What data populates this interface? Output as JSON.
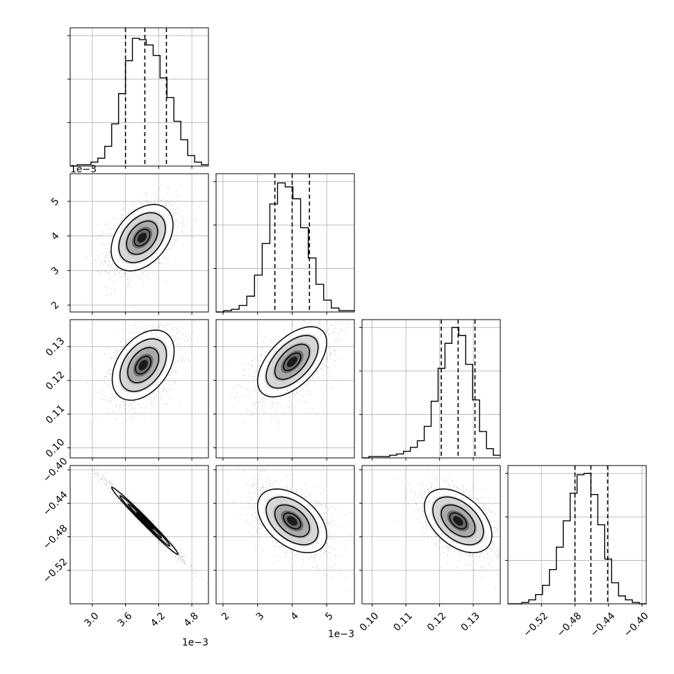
{
  "chart_data": {
    "type": "corner",
    "grid": true,
    "colors": {
      "ink": "#000000",
      "grid": "#b0b0b0",
      "scatter": "#555555"
    },
    "params": [
      {
        "range": [
          2.6,
          5.1
        ],
        "median": 3.95,
        "quantiles": [
          3.6,
          3.95,
          4.34
        ],
        "ticks": [
          3.0,
          3.6,
          4.2,
          4.8
        ],
        "tick_labels": [
          "3.0",
          "3.6",
          "4.2",
          "4.8"
        ],
        "sci_label": "1e−3",
        "hist": [
          0,
          0.01,
          0.01,
          0.03,
          0.06,
          0.15,
          0.32,
          0.55,
          0.8,
          0.97,
          0.96,
          0.92,
          0.84,
          0.67,
          0.52,
          0.34,
          0.2,
          0.08,
          0.03,
          0.01
        ]
      },
      {
        "range": [
          1.8,
          5.8
        ],
        "median": 4.0,
        "quantiles": [
          3.5,
          4.0,
          4.5
        ],
        "ticks": [
          2,
          3,
          4,
          5
        ],
        "tick_labels": [
          "2",
          "3",
          "4",
          "5"
        ],
        "sci_label": "1e−3",
        "hist": [
          0,
          0.01,
          0.02,
          0.05,
          0.12,
          0.28,
          0.52,
          0.82,
          0.98,
          0.95,
          0.86,
          0.64,
          0.41,
          0.21,
          0.09,
          0.03,
          0.01,
          0.01
        ]
      },
      {
        "range": [
          0.097,
          0.138
        ],
        "median": 0.1255,
        "quantiles": [
          0.1205,
          0.1255,
          0.1305
        ],
        "ticks": [
          0.1,
          0.11,
          0.12,
          0.13
        ],
        "tick_labels": [
          "0.10",
          "0.11",
          "0.12",
          "0.13"
        ],
        "hist": [
          0,
          0.01,
          0.01,
          0.01,
          0.02,
          0.03,
          0.05,
          0.08,
          0.13,
          0.24,
          0.43,
          0.68,
          0.87,
          0.99,
          0.93,
          0.71,
          0.44,
          0.2,
          0.07,
          0.02
        ]
      },
      {
        "range": [
          -0.56,
          -0.395
        ],
        "median": -0.461,
        "quantiles": [
          -0.48,
          -0.461,
          -0.441
        ],
        "ticks": [
          -0.52,
          -0.48,
          -0.44,
          -0.4
        ],
        "tick_labels": [
          "−0.52",
          "−0.48",
          "−0.44",
          "−0.40"
        ],
        "hist": [
          0,
          0,
          0.01,
          0.03,
          0.07,
          0.14,
          0.26,
          0.43,
          0.63,
          0.84,
          0.98,
          0.99,
          0.83,
          0.6,
          0.34,
          0.16,
          0.06,
          0.03,
          0.01,
          0
        ]
      }
    ],
    "pairs": [
      {
        "x": 0,
        "y": 1,
        "mean": [
          3.9,
          3.95
        ],
        "sd": [
          0.28,
          0.48
        ],
        "rho": 0.38
      },
      {
        "x": 0,
        "y": 2,
        "mean": [
          3.92,
          0.1245
        ],
        "sd": [
          0.28,
          0.0052
        ],
        "rho": 0.4
      },
      {
        "x": 0,
        "y": 3,
        "mean": [
          3.95,
          -0.461
        ],
        "sd": [
          0.3,
          0.02
        ],
        "rho": -0.99
      },
      {
        "x": 1,
        "y": 2,
        "mean": [
          4.0,
          0.1255
        ],
        "sd": [
          0.5,
          0.0052
        ],
        "rho": 0.55
      },
      {
        "x": 1,
        "y": 3,
        "mean": [
          4.0,
          -0.461
        ],
        "sd": [
          0.5,
          0.019
        ],
        "rho": -0.45
      },
      {
        "x": 2,
        "y": 3,
        "mean": [
          0.1255,
          -0.461
        ],
        "sd": [
          0.005,
          0.019
        ],
        "rho": -0.45
      }
    ]
  }
}
